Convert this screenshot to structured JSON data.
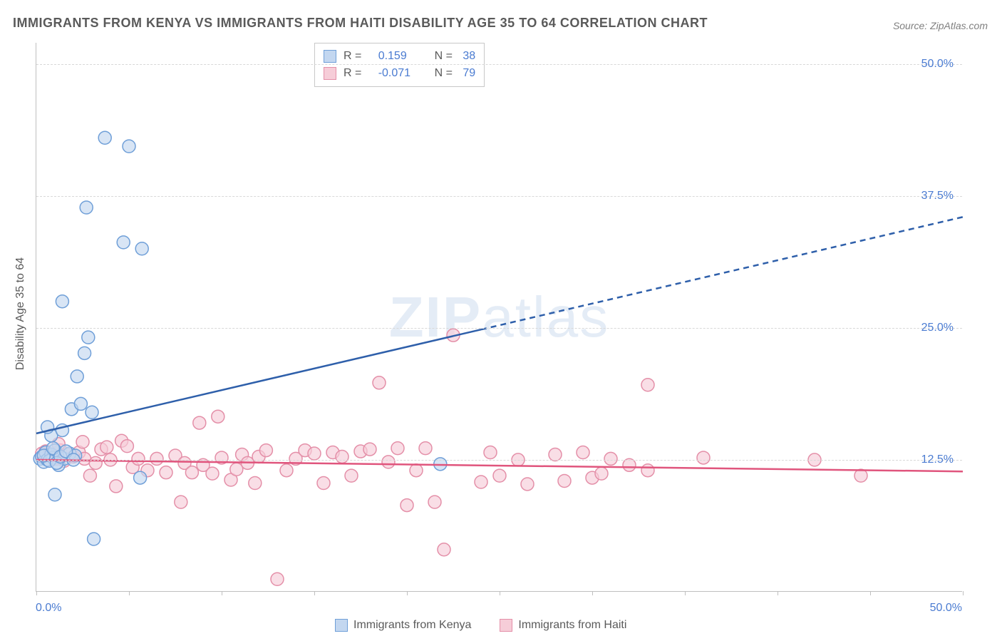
{
  "title": "IMMIGRANTS FROM KENYA VS IMMIGRANTS FROM HAITI DISABILITY AGE 35 TO 64 CORRELATION CHART",
  "source": "Source: ZipAtlas.com",
  "ylabel": "Disability Age 35 to 64",
  "watermark": "ZIPatlas",
  "chart": {
    "type": "scatter",
    "xlim": [
      0,
      50
    ],
    "ylim": [
      0,
      52
    ],
    "x_ticks": [
      0,
      5,
      10,
      15,
      20,
      25,
      30,
      35,
      40,
      45,
      50
    ],
    "y_gridlines": [
      12.5,
      25.0,
      37.5,
      50.0
    ],
    "y_tick_labels": [
      "12.5%",
      "25.0%",
      "37.5%",
      "50.0%"
    ],
    "x_start_label": "0.0%",
    "x_end_label": "50.0%",
    "background_color": "#ffffff",
    "grid_color": "#d8d8d8",
    "axis_color": "#bfbfbf",
    "marker_radius": 9,
    "marker_stroke_width": 1.5,
    "series": [
      {
        "name": "Immigrants from Kenya",
        "fill_color": "#c3d7f0",
        "stroke_color": "#6f9fd8",
        "fill_opacity": 0.65,
        "r_value": "0.159",
        "n_value": "38",
        "trend": {
          "y_at_x0": 15.0,
          "y_at_xmax": 35.5,
          "solid_until_x": 24.0,
          "color": "#2e5faa",
          "width": 2.5
        },
        "points": [
          [
            0.2,
            12.6
          ],
          [
            0.3,
            12.8
          ],
          [
            0.4,
            12.3
          ],
          [
            0.5,
            13.2
          ],
          [
            0.6,
            12.5
          ],
          [
            0.8,
            13.0
          ],
          [
            0.9,
            12.7
          ],
          [
            1.0,
            13.4
          ],
          [
            1.2,
            12.0
          ],
          [
            0.7,
            12.4
          ],
          [
            1.5,
            12.6
          ],
          [
            1.8,
            13.1
          ],
          [
            2.1,
            12.9
          ],
          [
            1.0,
            9.2
          ],
          [
            3.1,
            5.0
          ],
          [
            0.8,
            14.8
          ],
          [
            0.6,
            15.6
          ],
          [
            1.4,
            15.3
          ],
          [
            1.9,
            17.3
          ],
          [
            2.4,
            17.8
          ],
          [
            2.2,
            20.4
          ],
          [
            2.6,
            22.6
          ],
          [
            2.8,
            24.1
          ],
          [
            1.4,
            27.5
          ],
          [
            4.7,
            33.1
          ],
          [
            5.7,
            32.5
          ],
          [
            2.7,
            36.4
          ],
          [
            5.0,
            42.2
          ],
          [
            3.7,
            43.0
          ],
          [
            21.8,
            12.1
          ],
          [
            5.6,
            10.8
          ],
          [
            0.4,
            12.9
          ],
          [
            0.9,
            13.6
          ],
          [
            1.1,
            12.2
          ],
          [
            1.3,
            12.8
          ],
          [
            1.6,
            13.3
          ],
          [
            2.0,
            12.5
          ],
          [
            3.0,
            17.0
          ]
        ]
      },
      {
        "name": "Immigrants from Haiti",
        "fill_color": "#f6cdd8",
        "stroke_color": "#e48fa8",
        "fill_opacity": 0.65,
        "r_value": "-0.071",
        "n_value": "79",
        "trend": {
          "y_at_x0": 12.5,
          "y_at_xmax": 11.4,
          "solid_until_x": 50.0,
          "color": "#e0557d",
          "width": 2.5
        },
        "points": [
          [
            0.3,
            13.1
          ],
          [
            0.5,
            13.3
          ],
          [
            0.7,
            13.0
          ],
          [
            0.9,
            12.8
          ],
          [
            1.1,
            12.6
          ],
          [
            1.3,
            13.4
          ],
          [
            1.5,
            12.4
          ],
          [
            1.7,
            13.0
          ],
          [
            2.0,
            12.8
          ],
          [
            2.3,
            13.2
          ],
          [
            2.6,
            12.6
          ],
          [
            2.9,
            11.0
          ],
          [
            3.2,
            12.2
          ],
          [
            3.5,
            13.5
          ],
          [
            3.8,
            13.7
          ],
          [
            4.0,
            12.5
          ],
          [
            4.3,
            10.0
          ],
          [
            4.6,
            14.3
          ],
          [
            4.9,
            13.8
          ],
          [
            5.2,
            11.8
          ],
          [
            5.5,
            12.6
          ],
          [
            6.0,
            11.5
          ],
          [
            6.5,
            12.6
          ],
          [
            7.0,
            11.3
          ],
          [
            7.5,
            12.9
          ],
          [
            7.8,
            8.5
          ],
          [
            8.0,
            12.2
          ],
          [
            8.4,
            11.3
          ],
          [
            8.8,
            16.0
          ],
          [
            9.0,
            12.0
          ],
          [
            9.5,
            11.2
          ],
          [
            9.8,
            16.6
          ],
          [
            10.0,
            12.7
          ],
          [
            10.5,
            10.6
          ],
          [
            10.8,
            11.6
          ],
          [
            11.1,
            13.0
          ],
          [
            11.4,
            12.2
          ],
          [
            11.8,
            10.3
          ],
          [
            12.0,
            12.8
          ],
          [
            12.4,
            13.4
          ],
          [
            13.0,
            1.2
          ],
          [
            13.5,
            11.5
          ],
          [
            14.0,
            12.6
          ],
          [
            14.5,
            13.4
          ],
          [
            15.0,
            13.1
          ],
          [
            15.5,
            10.3
          ],
          [
            16.0,
            13.2
          ],
          [
            16.5,
            12.8
          ],
          [
            17.0,
            11.0
          ],
          [
            17.5,
            13.3
          ],
          [
            18.0,
            13.5
          ],
          [
            18.5,
            19.8
          ],
          [
            19.0,
            12.3
          ],
          [
            19.5,
            13.6
          ],
          [
            20.0,
            8.2
          ],
          [
            20.5,
            11.5
          ],
          [
            21.0,
            13.6
          ],
          [
            21.5,
            8.5
          ],
          [
            22.5,
            24.3
          ],
          [
            22.0,
            4.0
          ],
          [
            24.0,
            10.4
          ],
          [
            24.5,
            13.2
          ],
          [
            25.0,
            11.0
          ],
          [
            26.0,
            12.5
          ],
          [
            26.5,
            10.2
          ],
          [
            28.0,
            13.0
          ],
          [
            28.5,
            10.5
          ],
          [
            29.5,
            13.2
          ],
          [
            30.0,
            10.8
          ],
          [
            30.5,
            11.2
          ],
          [
            31.0,
            12.6
          ],
          [
            32.0,
            12.0
          ],
          [
            33.0,
            11.5
          ],
          [
            33.0,
            19.6
          ],
          [
            36.0,
            12.7
          ],
          [
            42.0,
            12.5
          ],
          [
            44.5,
            11.0
          ],
          [
            1.2,
            14.0
          ],
          [
            2.5,
            14.2
          ]
        ]
      }
    ]
  },
  "legend_bottom": [
    {
      "label": "Immigrants from Kenya",
      "fill": "#c3d7f0",
      "stroke": "#6f9fd8"
    },
    {
      "label": "Immigrants from Haiti",
      "fill": "#f6cdd8",
      "stroke": "#e48fa8"
    }
  ]
}
